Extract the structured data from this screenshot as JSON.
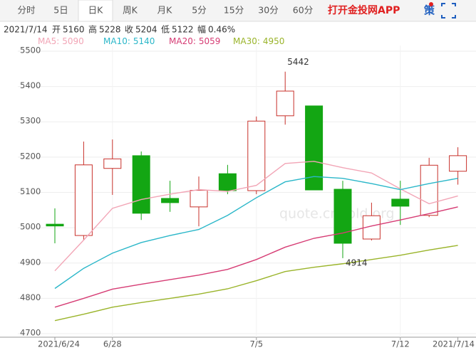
{
  "header": {
    "tabs": [
      "分时",
      "5日",
      "日K",
      "周K",
      "月K",
      "5分",
      "15分",
      "30分",
      "60分"
    ],
    "selected_tab": 2,
    "app_link": "打开金投网APP",
    "strategy_icon": "策",
    "info_labels": [
      "开",
      "高",
      "收",
      "低",
      "幅"
    ],
    "change": "0.46%",
    "watermark": "quote.cngold.org"
  },
  "chart_data": {
    "type": "candlestick",
    "categories": [
      "2021/6/24",
      null,
      "6/28",
      null,
      null,
      null,
      null,
      "7/5",
      null,
      null,
      null,
      null,
      "7/12",
      null,
      "2021/7/14"
    ],
    "open": [
      5010,
      4978,
      5168,
      5204,
      5083,
      5059,
      5153,
      5105,
      5317,
      5345,
      5109,
      4968,
      5081,
      5035,
      5160
    ],
    "high": [
      5055,
      5244,
      5250,
      5216,
      5133,
      5145,
      5178,
      5315,
      5442,
      5345,
      5133,
      5071,
      5133,
      5198,
      5228
    ],
    "low": [
      4956,
      4964,
      5093,
      5022,
      5045,
      5004,
      5095,
      5095,
      5292,
      5107,
      4914,
      4964,
      5008,
      5030,
      5122
    ],
    "close": [
      5005,
      5178,
      5195,
      5041,
      5071,
      5106,
      5105,
      5302,
      5387,
      5107,
      4956,
      5034,
      5061,
      5177,
      5204
    ],
    "up_color": "#c8312b",
    "down_color": "#13a613",
    "ma_separator": ":",
    "ma": [
      {
        "name": "MA5",
        "color": "#f2a5b6",
        "values": [
          4878,
          4965,
          5055,
          5080,
          5095,
          5108,
          5103,
          5120,
          5182,
          5188,
          5170,
          5155,
          5110,
          5068,
          5090
        ]
      },
      {
        "name": "MA10",
        "color": "#2bb7c9",
        "values": [
          4828,
          4885,
          4928,
          4958,
          4978,
          4995,
          5035,
          5085,
          5130,
          5145,
          5140,
          5125,
          5108,
          5125,
          5140
        ]
      },
      {
        "name": "MA20",
        "color": "#d63c74",
        "values": [
          4775,
          4800,
          4826,
          4840,
          4853,
          4866,
          4882,
          4910,
          4945,
          4970,
          4985,
          5005,
          5022,
          5040,
          5059
        ]
      },
      {
        "name": "MA30",
        "color": "#9ab42a",
        "values": [
          4737,
          4755,
          4775,
          4788,
          4800,
          4812,
          4827,
          4850,
          4876,
          4888,
          4898,
          4910,
          4922,
          4937,
          4950
        ]
      }
    ],
    "ylim": [
      4690,
      5516
    ],
    "yticks": [
      4700,
      4800,
      4900,
      5000,
      5100,
      5200,
      5300,
      5400,
      5500
    ],
    "grid": true
  }
}
